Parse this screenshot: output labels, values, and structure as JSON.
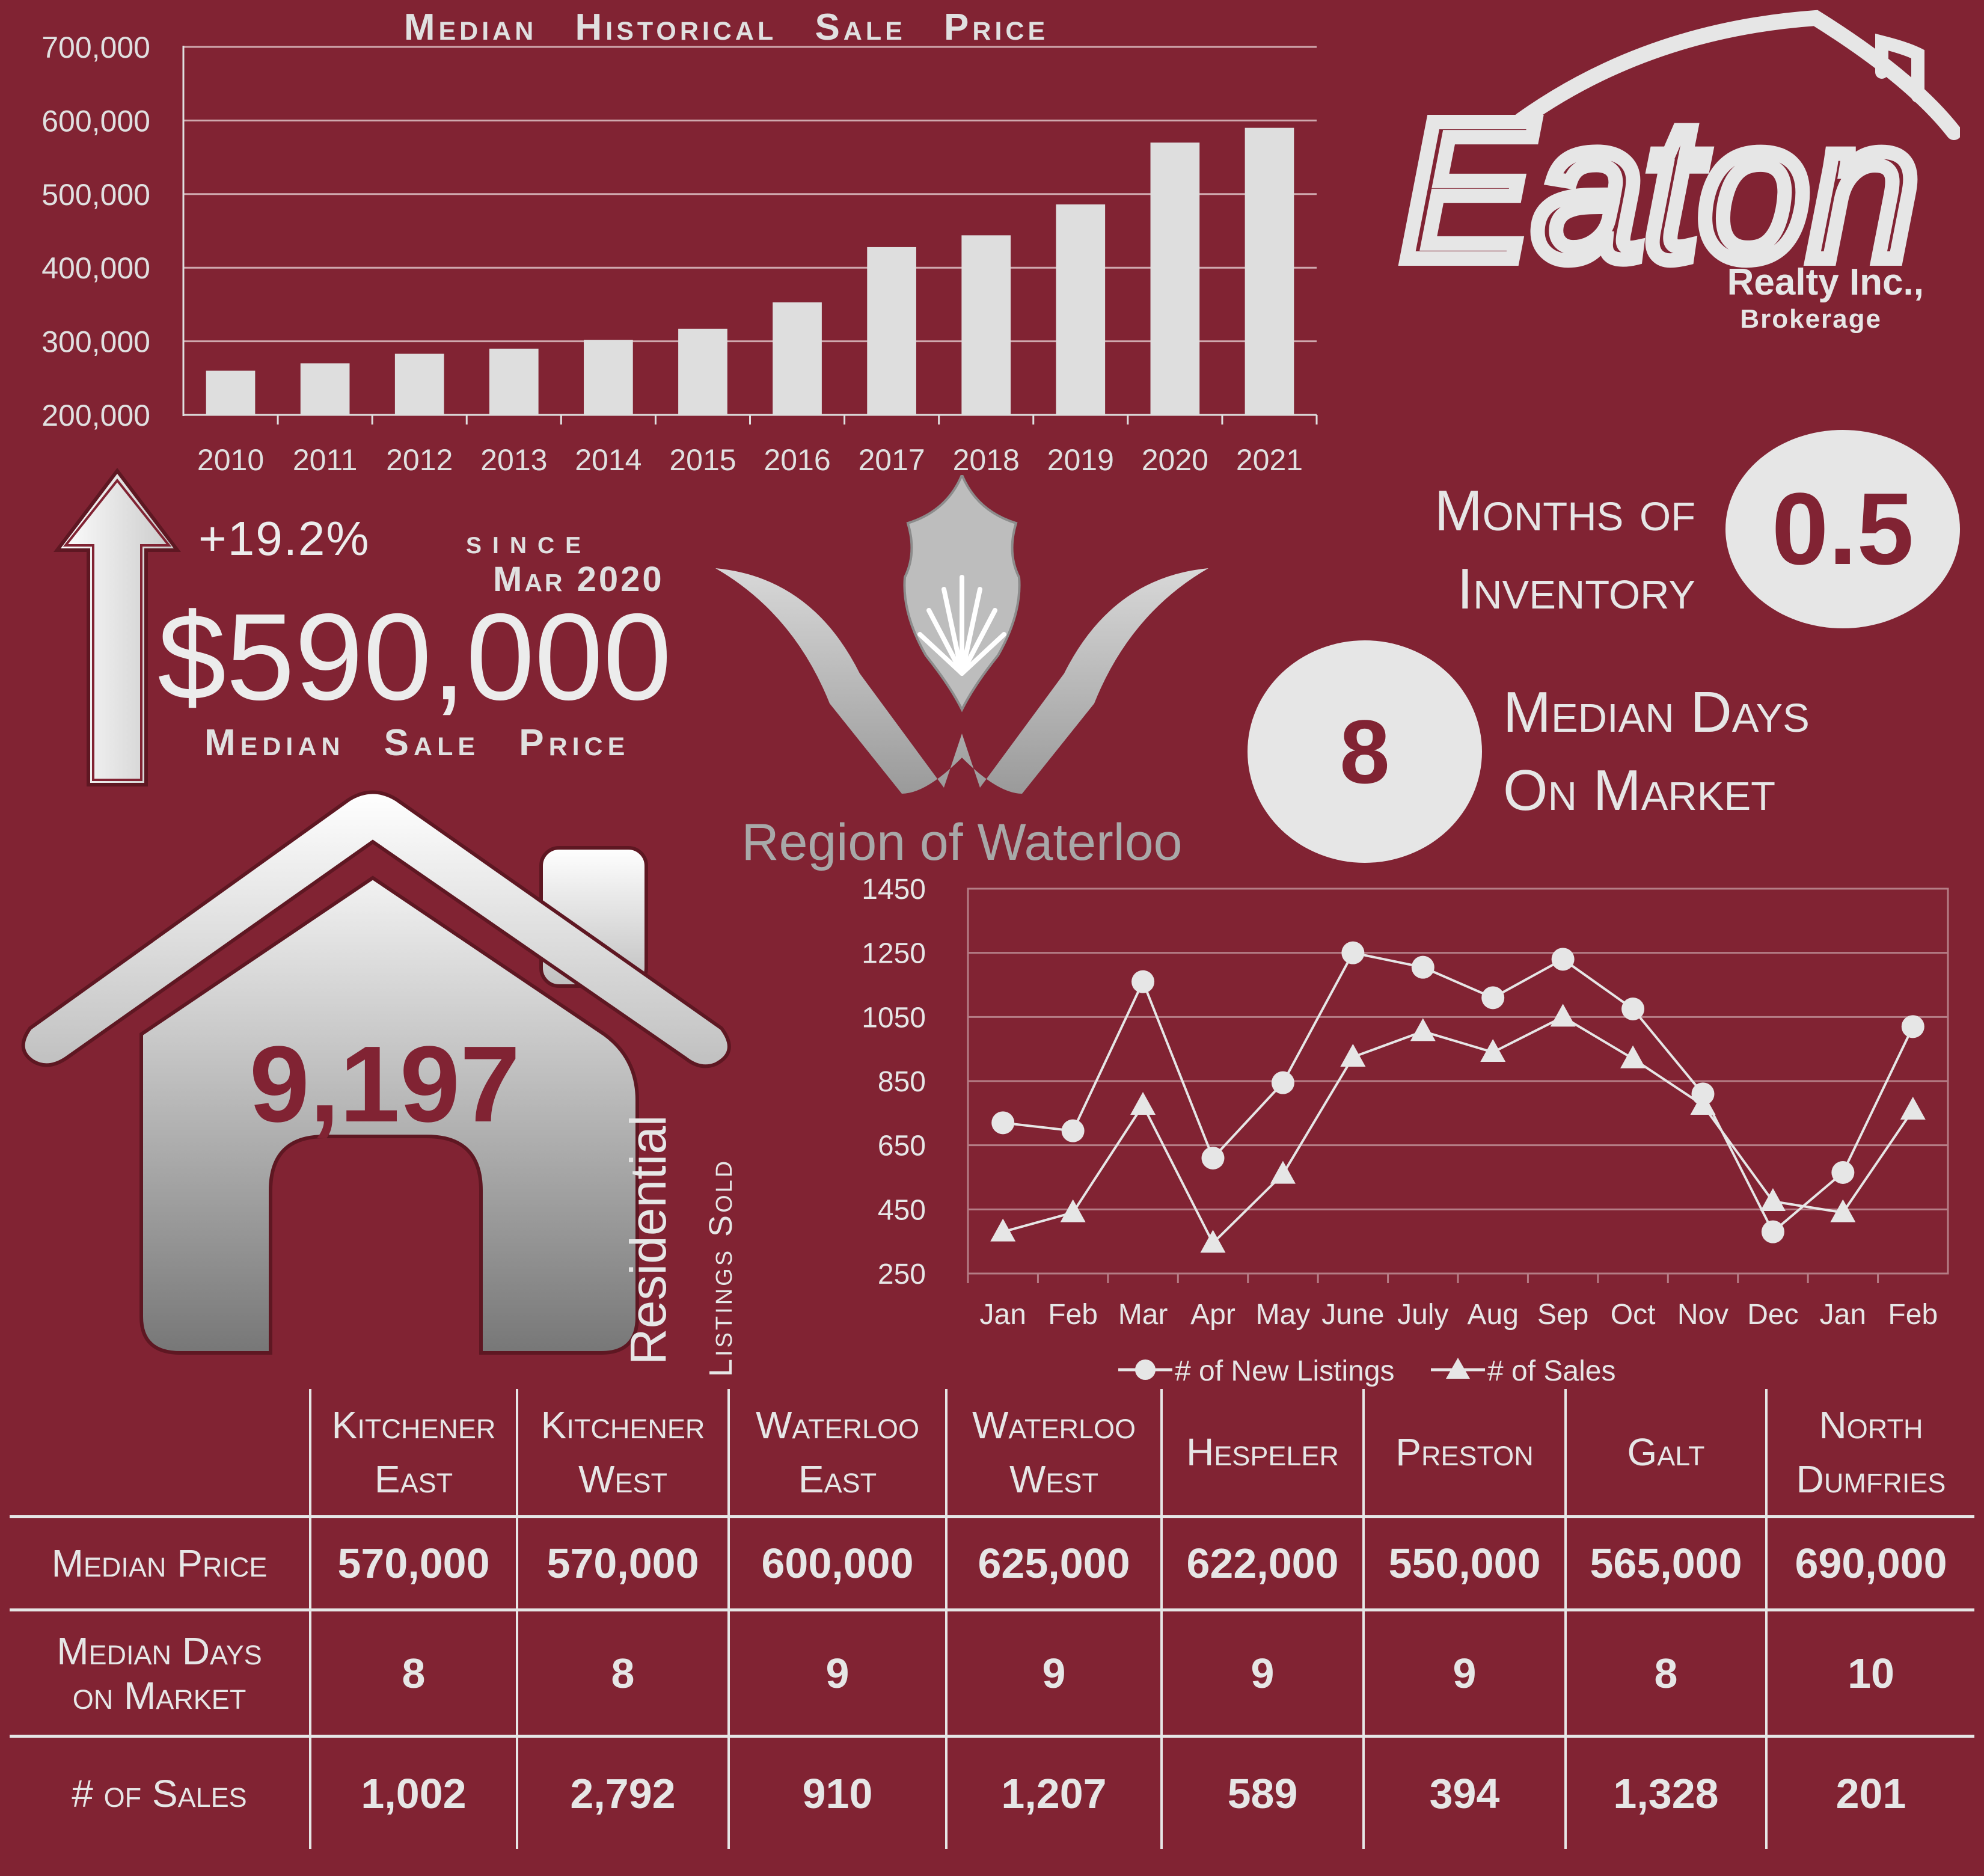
{
  "bar_chart": {
    "title": "Median Historical Sale Price",
    "yticks": [
      "700,000",
      "600,000",
      "500,000",
      "400,000",
      "300,000",
      "200,000"
    ]
  },
  "line_chart": {
    "yticks": [
      "1450",
      "1250",
      "1050",
      "850",
      "650",
      "450",
      "250"
    ],
    "legend": [
      "# of New Listings",
      "# of Sales"
    ]
  },
  "chart_data": [
    {
      "type": "bar",
      "title": "Median Historical Sale Price",
      "categories": [
        "2010",
        "2011",
        "2012",
        "2013",
        "2014",
        "2015",
        "2016",
        "2017",
        "2018",
        "2019",
        "2020",
        "2021"
      ],
      "values": [
        260000,
        270000,
        283000,
        290000,
        302000,
        317000,
        353000,
        428000,
        444000,
        486000,
        570000,
        590000
      ],
      "xlabel": "",
      "ylabel": "",
      "ylim": [
        200000,
        700000
      ],
      "grid": true
    },
    {
      "type": "line",
      "title": "",
      "categories": [
        "Jan",
        "Feb",
        "Mar",
        "Apr",
        "May",
        "June",
        "July",
        "Aug",
        "Sep",
        "Oct",
        "Nov",
        "Dec",
        "Jan",
        "Feb"
      ],
      "series": [
        {
          "name": "# of New Listings",
          "values": [
            720,
            695,
            1160,
            610,
            845,
            1250,
            1205,
            1110,
            1230,
            1075,
            810,
            380,
            565,
            1020
          ]
        },
        {
          "name": "# of Sales",
          "values": [
            380,
            440,
            775,
            345,
            560,
            925,
            1005,
            940,
            1050,
            920,
            775,
            475,
            440,
            760
          ]
        }
      ],
      "ylim": [
        250,
        1450
      ],
      "grid": true,
      "legend_position": "bottom"
    }
  ],
  "headline": {
    "pct_change": "+19.2%",
    "since_label": "since",
    "since_date": "Mar 2020",
    "median_price": "$590,000",
    "median_price_label": "Median Sale Price"
  },
  "inventory": {
    "label_line1": "Months of",
    "label_line2": "Inventory",
    "value": "0.5"
  },
  "days_on_market": {
    "value": "8",
    "label_line1": "Median Days",
    "label_line2": "On Market"
  },
  "listings": {
    "count": "9,197",
    "label_line1": "Residential",
    "label_line2": "Listings Sold"
  },
  "brand": {
    "name": "Eaton",
    "sub1": "Realty Inc.,",
    "sub2": "Brokerage",
    "region": "Region of Waterloo"
  },
  "table": {
    "columns": [
      [
        "Kitchener",
        "East"
      ],
      [
        "Kitchener",
        "West"
      ],
      [
        "Waterloo",
        "East"
      ],
      [
        "Waterloo",
        "West"
      ],
      [
        "Hespeler"
      ],
      [
        "Preston"
      ],
      [
        "Galt"
      ],
      [
        "North",
        "Dumfries"
      ]
    ],
    "rows": [
      {
        "label": [
          "Median Price"
        ],
        "values": [
          "570,000",
          "570,000",
          "600,000",
          "625,000",
          "622,000",
          "550,000",
          "565,000",
          "690,000"
        ]
      },
      {
        "label": [
          "Median Days",
          "on Market"
        ],
        "values": [
          "8",
          "8",
          "9",
          "9",
          "9",
          "9",
          "8",
          "10"
        ]
      },
      {
        "label": [
          "# of Sales"
        ],
        "values": [
          "1,002",
          "2,792",
          "910",
          "1,207",
          "589",
          "394",
          "1,328",
          "201"
        ]
      }
    ]
  },
  "colors": {
    "background": "#812333",
    "foreground": "#e6e6e6",
    "bar": "#dedede"
  }
}
